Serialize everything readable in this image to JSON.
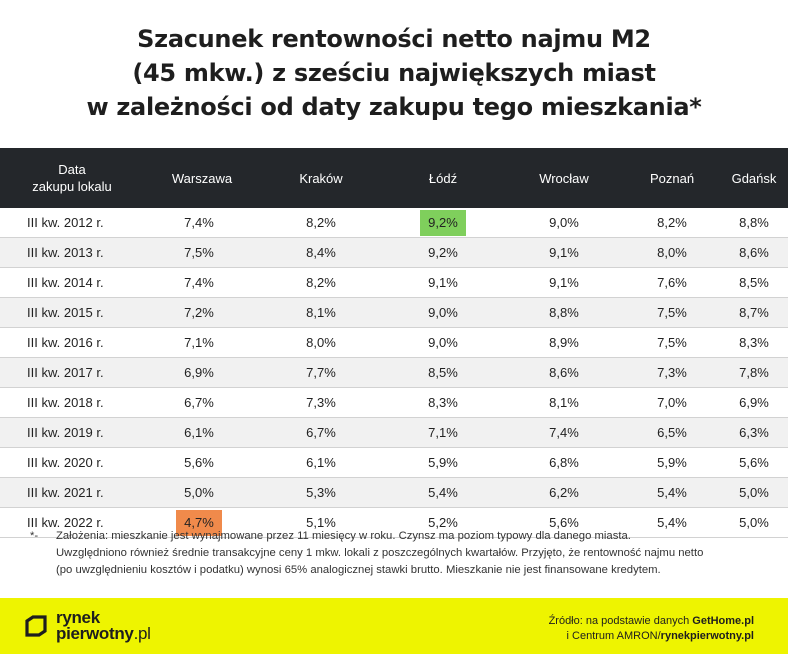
{
  "title_lines": [
    "Szacunek rentowności netto najmu M2",
    "(45 mkw.) z sześciu największych miast",
    "w zależności od daty zakupu tego mieszkania*"
  ],
  "chart_data": {
    "type": "table",
    "title": "Szacunek rentowności netto najmu M2 (45 mkw.) z sześciu największych miast w zależności od daty zakupu tego mieszkania*",
    "row_header": "Data zakupu lokalu",
    "row_header_lines": [
      "Data",
      "zakupu lokalu"
    ],
    "columns": [
      "Warszawa",
      "Kraków",
      "Łódź",
      "Wrocław",
      "Poznań",
      "Gdańsk"
    ],
    "rows": [
      {
        "label": "III kw. 2012 r.",
        "values": [
          "7,4%",
          "8,2%",
          "9,2%",
          "9,0%",
          "8,2%",
          "8,8%"
        ]
      },
      {
        "label": "III kw. 2013 r.",
        "values": [
          "7,5%",
          "8,4%",
          "9,2%",
          "9,1%",
          "8,0%",
          "8,6%"
        ]
      },
      {
        "label": "III kw. 2014 r.",
        "values": [
          "7,4%",
          "8,2%",
          "9,1%",
          "9,1%",
          "7,6%",
          "8,5%"
        ]
      },
      {
        "label": "III kw. 2015 r.",
        "values": [
          "7,2%",
          "8,1%",
          "9,0%",
          "8,8%",
          "7,5%",
          "8,7%"
        ]
      },
      {
        "label": "III kw. 2016 r.",
        "values": [
          "7,1%",
          "8,0%",
          "9,0%",
          "8,9%",
          "7,5%",
          "8,3%"
        ]
      },
      {
        "label": "III kw. 2017 r.",
        "values": [
          "6,9%",
          "7,7%",
          "8,5%",
          "8,6%",
          "7,3%",
          "7,8%"
        ]
      },
      {
        "label": "III kw. 2018 r.",
        "values": [
          "6,7%",
          "7,3%",
          "8,3%",
          "8,1%",
          "7,0%",
          "6,9%"
        ]
      },
      {
        "label": "III kw. 2019 r.",
        "values": [
          "6,1%",
          "6,7%",
          "7,1%",
          "7,4%",
          "6,5%",
          "6,3%"
        ]
      },
      {
        "label": "III kw. 2020 r.",
        "values": [
          "5,6%",
          "6,1%",
          "5,9%",
          "6,8%",
          "5,9%",
          "5,6%"
        ]
      },
      {
        "label": "III kw. 2021 r.",
        "values": [
          "5,0%",
          "5,3%",
          "5,4%",
          "6,2%",
          "5,4%",
          "5,0%"
        ]
      },
      {
        "label": "III kw. 2022 r.",
        "values": [
          "4,7%",
          "5,1%",
          "5,2%",
          "5,6%",
          "5,4%",
          "5,0%"
        ]
      }
    ],
    "highlights": [
      {
        "row": 0,
        "col": 2,
        "color": "#7fcf5c"
      },
      {
        "row": 10,
        "col": 0,
        "color": "#f08a4b"
      }
    ]
  },
  "notes": {
    "star": "*-",
    "lines": [
      "Założenia: mieszkanie jest wynajmowane przez 11 miesięcy w roku. Czynsz ma poziom typowy dla danego miasta.",
      "Uwzględniono również średnie transakcyjne ceny 1 mkw. lokali z poszczególnych kwartałów. Przyjęto, że rentowność najmu netto",
      "(po uwzględnieniu kosztów i podatku) wynosi 65% analogicznej stawki brutto. Mieszkanie nie jest finansowane kredytem."
    ]
  },
  "footer": {
    "logo_line1": "rynek",
    "logo_line2": "pierwotny",
    "logo_suffix": ".pl",
    "source_line1_prefix": "Źródło: na podstawie danych ",
    "source_line1_bold": "GetHome.pl",
    "source_line2_prefix": "i Centrum AMRON/",
    "source_line2_bold": "rynekpierwotny.pl",
    "bg_color": "#eef400"
  },
  "colors": {
    "header_bg": "#24272b",
    "row_alt": "#f1f1f1",
    "highlight_high": "#7fcf5c",
    "highlight_low": "#f08a4b"
  }
}
